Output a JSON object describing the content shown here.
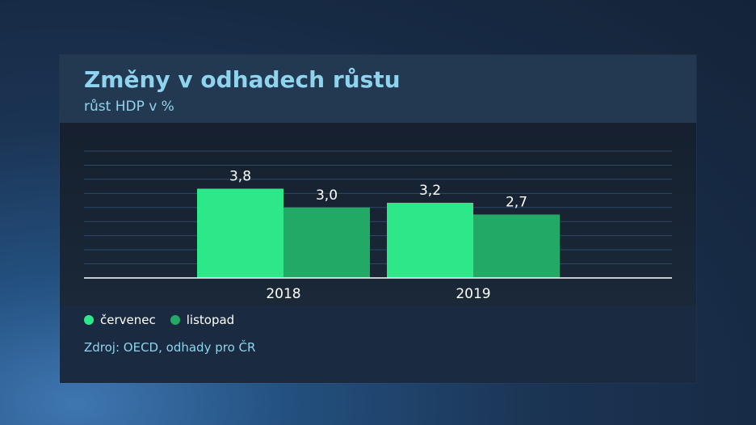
{
  "title": "Změny v odhadech růstu",
  "subtitle": "růst HDP v %",
  "source": "Zdroj: OECD, odhady pro ČR",
  "colors": {
    "cervenec": "#2de889",
    "listopad": "#23a966",
    "title": "#8fd4ee",
    "grid": "#2a4a6a"
  },
  "chart_data": {
    "type": "bar",
    "title": "Změny v odhadech růstu",
    "subtitle": "růst HDP v %",
    "categories": [
      "2018",
      "2019"
    ],
    "series": [
      {
        "name": "červenec",
        "values": [
          3.8,
          3.2
        ],
        "labels": [
          "3,8",
          "3,2"
        ],
        "color": "#2de889"
      },
      {
        "name": "listopad",
        "values": [
          3.0,
          2.7
        ],
        "labels": [
          "3,0",
          "2,7"
        ],
        "color": "#23a966"
      }
    ],
    "ylim": [
      0,
      5.4
    ],
    "grid": true,
    "legend": "bottom-left"
  }
}
